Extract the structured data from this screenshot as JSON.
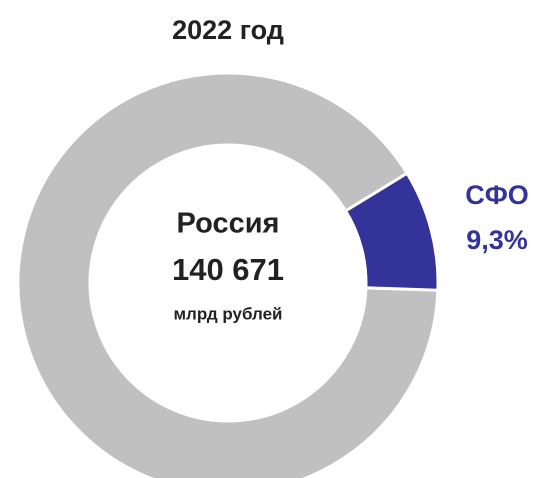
{
  "chart_data": {
    "type": "donut",
    "title": "2022 год",
    "categories": [
      "СФО",
      null
    ],
    "values": [
      9.3,
      90.7
    ],
    "value_labels": [
      "9,3%",
      null
    ],
    "colors": [
      "#333399",
      "#c0c0c0"
    ],
    "center_text": [
      "Россия",
      "140 671",
      "млрд рублей"
    ]
  }
}
